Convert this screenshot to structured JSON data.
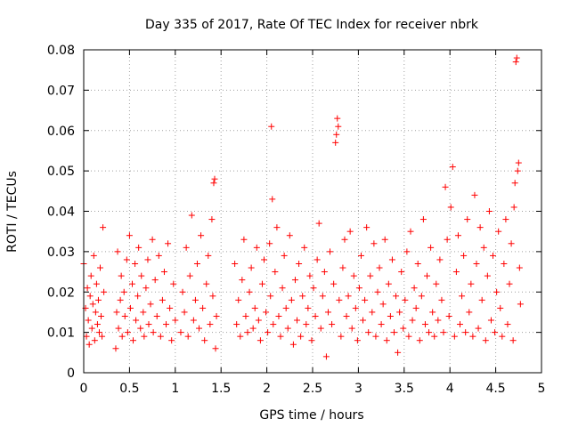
{
  "chart_data": {
    "type": "scatter",
    "title": "Day 335 of 2017, Rate Of TEC Index for receiver nbrk",
    "xlabel": "GPS time / hours",
    "ylabel": "ROTI / TECUs",
    "xlim": [
      0,
      5
    ],
    "ylim": [
      0,
      0.08
    ],
    "xticks": [
      0,
      0.5,
      1,
      1.5,
      2,
      2.5,
      3,
      3.5,
      4,
      4.5,
      5
    ],
    "yticks": [
      0,
      0.01,
      0.02,
      0.03,
      0.04,
      0.05,
      0.06,
      0.07,
      0.08
    ],
    "xtick_labels": [
      "0",
      "0.5",
      "1",
      "1.5",
      "2",
      "2.5",
      "3",
      "3.5",
      "4",
      "4.5",
      "5"
    ],
    "ytick_labels": [
      "0",
      "0.01",
      "0.02",
      "0.03",
      "0.04",
      "0.05",
      "0.06",
      "0.07",
      "0.08"
    ],
    "grid": true,
    "marker": "+",
    "color": "#ff0000",
    "series": [
      {
        "name": "ROTI",
        "points": [
          [
            0.0,
            0.027
          ],
          [
            0.02,
            0.016
          ],
          [
            0.03,
            0.009
          ],
          [
            0.04,
            0.021
          ],
          [
            0.05,
            0.013
          ],
          [
            0.06,
            0.007
          ],
          [
            0.07,
            0.019
          ],
          [
            0.08,
            0.024
          ],
          [
            0.09,
            0.011
          ],
          [
            0.1,
            0.017
          ],
          [
            0.11,
            0.029
          ],
          [
            0.12,
            0.008
          ],
          [
            0.13,
            0.015
          ],
          [
            0.14,
            0.022
          ],
          [
            0.15,
            0.012
          ],
          [
            0.16,
            0.018
          ],
          [
            0.17,
            0.01
          ],
          [
            0.18,
            0.026
          ],
          [
            0.19,
            0.014
          ],
          [
            0.2,
            0.009
          ],
          [
            0.21,
            0.036
          ],
          [
            0.22,
            0.02
          ],
          [
            0.35,
            0.006
          ],
          [
            0.36,
            0.015
          ],
          [
            0.37,
            0.03
          ],
          [
            0.38,
            0.011
          ],
          [
            0.4,
            0.018
          ],
          [
            0.41,
            0.024
          ],
          [
            0.42,
            0.009
          ],
          [
            0.44,
            0.02
          ],
          [
            0.45,
            0.014
          ],
          [
            0.47,
            0.028
          ],
          [
            0.48,
            0.01
          ],
          [
            0.5,
            0.034
          ],
          [
            0.51,
            0.016
          ],
          [
            0.53,
            0.022
          ],
          [
            0.54,
            0.008
          ],
          [
            0.56,
            0.027
          ],
          [
            0.57,
            0.013
          ],
          [
            0.59,
            0.019
          ],
          [
            0.6,
            0.031
          ],
          [
            0.62,
            0.011
          ],
          [
            0.63,
            0.024
          ],
          [
            0.65,
            0.015
          ],
          [
            0.66,
            0.009
          ],
          [
            0.68,
            0.021
          ],
          [
            0.7,
            0.028
          ],
          [
            0.71,
            0.012
          ],
          [
            0.73,
            0.017
          ],
          [
            0.75,
            0.033
          ],
          [
            0.76,
            0.01
          ],
          [
            0.78,
            0.023
          ],
          [
            0.8,
            0.014
          ],
          [
            0.82,
            0.029
          ],
          [
            0.84,
            0.009
          ],
          [
            0.86,
            0.018
          ],
          [
            0.88,
            0.025
          ],
          [
            0.9,
            0.012
          ],
          [
            0.92,
            0.032
          ],
          [
            0.94,
            0.016
          ],
          [
            0.96,
            0.008
          ],
          [
            0.98,
            0.022
          ],
          [
            1.0,
            0.013
          ],
          [
            1.06,
            0.01
          ],
          [
            1.08,
            0.02
          ],
          [
            1.1,
            0.015
          ],
          [
            1.12,
            0.031
          ],
          [
            1.14,
            0.009
          ],
          [
            1.16,
            0.024
          ],
          [
            1.18,
            0.039
          ],
          [
            1.2,
            0.013
          ],
          [
            1.22,
            0.018
          ],
          [
            1.24,
            0.027
          ],
          [
            1.26,
            0.011
          ],
          [
            1.28,
            0.034
          ],
          [
            1.3,
            0.016
          ],
          [
            1.32,
            0.008
          ],
          [
            1.34,
            0.022
          ],
          [
            1.36,
            0.029
          ],
          [
            1.38,
            0.012
          ],
          [
            1.4,
            0.038
          ],
          [
            1.41,
            0.019
          ],
          [
            1.42,
            0.047
          ],
          [
            1.43,
            0.048
          ],
          [
            1.44,
            0.006
          ],
          [
            1.45,
            0.014
          ],
          [
            1.65,
            0.027
          ],
          [
            1.67,
            0.012
          ],
          [
            1.69,
            0.018
          ],
          [
            1.71,
            0.009
          ],
          [
            1.73,
            0.023
          ],
          [
            1.75,
            0.033
          ],
          [
            1.77,
            0.014
          ],
          [
            1.79,
            0.01
          ],
          [
            1.81,
            0.02
          ],
          [
            1.83,
            0.026
          ],
          [
            1.85,
            0.011
          ],
          [
            1.87,
            0.016
          ],
          [
            1.89,
            0.031
          ],
          [
            1.91,
            0.013
          ],
          [
            1.93,
            0.008
          ],
          [
            1.95,
            0.022
          ],
          [
            1.97,
            0.028
          ],
          [
            1.99,
            0.015
          ],
          [
            2.01,
            0.01
          ],
          [
            2.03,
            0.032
          ],
          [
            2.04,
            0.019
          ],
          [
            2.05,
            0.061
          ],
          [
            2.06,
            0.043
          ],
          [
            2.07,
            0.012
          ],
          [
            2.09,
            0.025
          ],
          [
            2.11,
            0.036
          ],
          [
            2.13,
            0.014
          ],
          [
            2.15,
            0.009
          ],
          [
            2.17,
            0.021
          ],
          [
            2.19,
            0.029
          ],
          [
            2.21,
            0.016
          ],
          [
            2.23,
            0.011
          ],
          [
            2.25,
            0.034
          ],
          [
            2.27,
            0.018
          ],
          [
            2.29,
            0.007
          ],
          [
            2.31,
            0.023
          ],
          [
            2.33,
            0.013
          ],
          [
            2.35,
            0.027
          ],
          [
            2.37,
            0.009
          ],
          [
            2.39,
            0.019
          ],
          [
            2.41,
            0.031
          ],
          [
            2.43,
            0.012
          ],
          [
            2.45,
            0.016
          ],
          [
            2.47,
            0.024
          ],
          [
            2.49,
            0.008
          ],
          [
            2.51,
            0.021
          ],
          [
            2.53,
            0.014
          ],
          [
            2.55,
            0.028
          ],
          [
            2.57,
            0.037
          ],
          [
            2.59,
            0.011
          ],
          [
            2.61,
            0.019
          ],
          [
            2.63,
            0.025
          ],
          [
            2.65,
            0.004
          ],
          [
            2.67,
            0.015
          ],
          [
            2.69,
            0.03
          ],
          [
            2.71,
            0.012
          ],
          [
            2.73,
            0.022
          ],
          [
            2.75,
            0.057
          ],
          [
            2.76,
            0.059
          ],
          [
            2.77,
            0.063
          ],
          [
            2.78,
            0.061
          ],
          [
            2.79,
            0.018
          ],
          [
            2.81,
            0.009
          ],
          [
            2.83,
            0.026
          ],
          [
            2.85,
            0.033
          ],
          [
            2.87,
            0.014
          ],
          [
            2.89,
            0.019
          ],
          [
            2.91,
            0.035
          ],
          [
            2.93,
            0.011
          ],
          [
            2.95,
            0.024
          ],
          [
            2.97,
            0.016
          ],
          [
            2.99,
            0.008
          ],
          [
            3.01,
            0.021
          ],
          [
            3.03,
            0.029
          ],
          [
            3.05,
            0.013
          ],
          [
            3.07,
            0.018
          ],
          [
            3.09,
            0.036
          ],
          [
            3.11,
            0.01
          ],
          [
            3.13,
            0.024
          ],
          [
            3.15,
            0.015
          ],
          [
            3.17,
            0.032
          ],
          [
            3.19,
            0.009
          ],
          [
            3.21,
            0.02
          ],
          [
            3.23,
            0.026
          ],
          [
            3.25,
            0.012
          ],
          [
            3.27,
            0.017
          ],
          [
            3.29,
            0.033
          ],
          [
            3.31,
            0.008
          ],
          [
            3.33,
            0.022
          ],
          [
            3.35,
            0.014
          ],
          [
            3.37,
            0.028
          ],
          [
            3.39,
            0.01
          ],
          [
            3.41,
            0.019
          ],
          [
            3.43,
            0.005
          ],
          [
            3.45,
            0.015
          ],
          [
            3.47,
            0.025
          ],
          [
            3.49,
            0.011
          ],
          [
            3.51,
            0.018
          ],
          [
            3.53,
            0.03
          ],
          [
            3.55,
            0.009
          ],
          [
            3.57,
            0.035
          ],
          [
            3.59,
            0.013
          ],
          [
            3.61,
            0.021
          ],
          [
            3.63,
            0.016
          ],
          [
            3.65,
            0.027
          ],
          [
            3.67,
            0.008
          ],
          [
            3.69,
            0.019
          ],
          [
            3.71,
            0.038
          ],
          [
            3.73,
            0.012
          ],
          [
            3.75,
            0.024
          ],
          [
            3.77,
            0.01
          ],
          [
            3.79,
            0.031
          ],
          [
            3.81,
            0.015
          ],
          [
            3.83,
            0.009
          ],
          [
            3.85,
            0.022
          ],
          [
            3.87,
            0.013
          ],
          [
            3.89,
            0.028
          ],
          [
            3.91,
            0.018
          ],
          [
            3.93,
            0.01
          ],
          [
            3.95,
            0.046
          ],
          [
            3.97,
            0.033
          ],
          [
            3.99,
            0.014
          ],
          [
            4.01,
            0.041
          ],
          [
            4.03,
            0.051
          ],
          [
            4.05,
            0.009
          ],
          [
            4.07,
            0.025
          ],
          [
            4.09,
            0.034
          ],
          [
            4.11,
            0.012
          ],
          [
            4.13,
            0.019
          ],
          [
            4.15,
            0.029
          ],
          [
            4.17,
            0.01
          ],
          [
            4.19,
            0.038
          ],
          [
            4.21,
            0.015
          ],
          [
            4.23,
            0.022
          ],
          [
            4.25,
            0.009
          ],
          [
            4.27,
            0.044
          ],
          [
            4.29,
            0.027
          ],
          [
            4.31,
            0.011
          ],
          [
            4.33,
            0.036
          ],
          [
            4.35,
            0.018
          ],
          [
            4.37,
            0.031
          ],
          [
            4.39,
            0.008
          ],
          [
            4.41,
            0.024
          ],
          [
            4.43,
            0.04
          ],
          [
            4.45,
            0.013
          ],
          [
            4.47,
            0.029
          ],
          [
            4.49,
            0.01
          ],
          [
            4.51,
            0.02
          ],
          [
            4.53,
            0.035
          ],
          [
            4.55,
            0.016
          ],
          [
            4.57,
            0.009
          ],
          [
            4.59,
            0.027
          ],
          [
            4.61,
            0.038
          ],
          [
            4.63,
            0.012
          ],
          [
            4.65,
            0.022
          ],
          [
            4.67,
            0.032
          ],
          [
            4.69,
            0.008
          ],
          [
            4.7,
            0.041
          ],
          [
            4.71,
            0.047
          ],
          [
            4.72,
            0.077
          ],
          [
            4.73,
            0.078
          ],
          [
            4.74,
            0.05
          ],
          [
            4.75,
            0.052
          ],
          [
            4.76,
            0.026
          ],
          [
            4.77,
            0.017
          ]
        ]
      }
    ]
  }
}
